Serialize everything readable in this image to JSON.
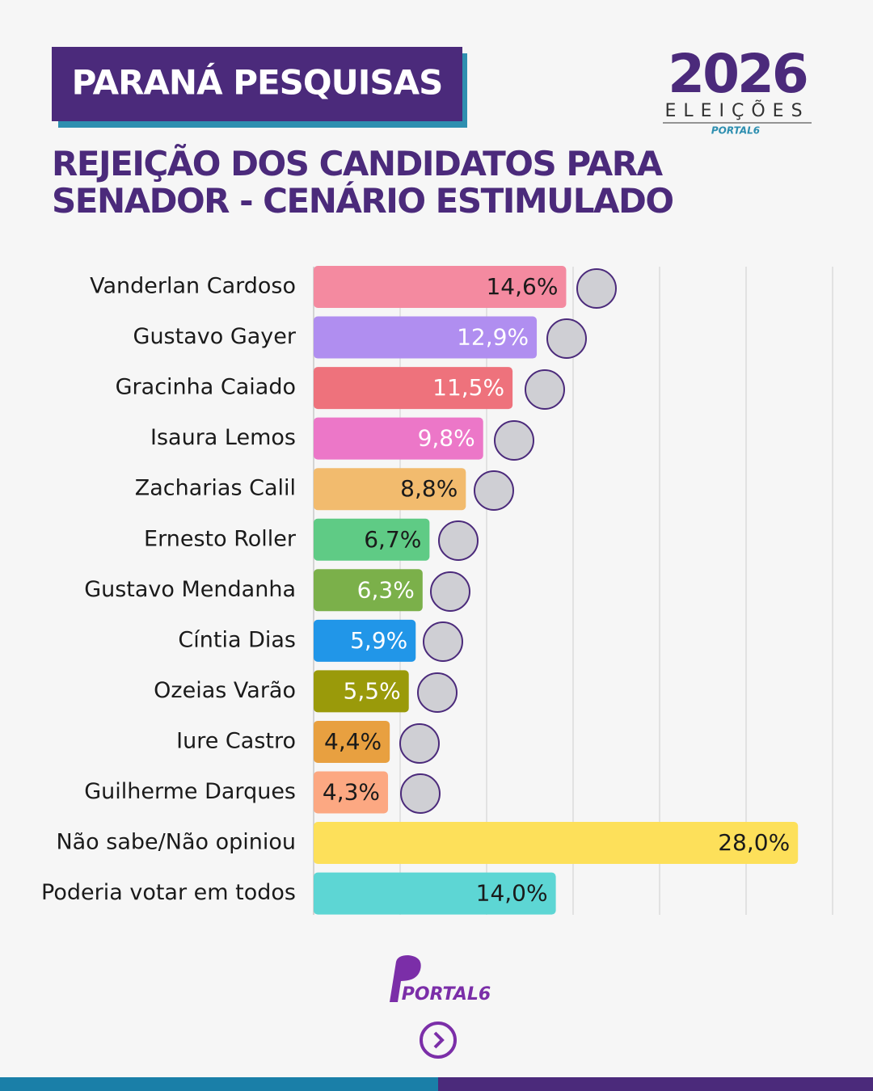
{
  "header": {
    "badge": "PARANÁ PESQUISAS",
    "logo_year": "2026",
    "logo_text": "ELEIÇÕES",
    "logo_brand": "PORTAL6"
  },
  "chart_data": {
    "type": "hbar",
    "title": "REJEIÇÃO DOS CANDIDATOS PARA SENADOR - CENÁRIO ESTIMULADO",
    "categories": [
      "Vanderlan Cardoso",
      "Gustavo Gayer",
      "Gracinha Caiado",
      "Isaura Lemos",
      "Zacharias Calil",
      "Ernesto Roller",
      "Gustavo Mendanha",
      "Cíntia Dias",
      "Ozeias Varão",
      "Iure Castro",
      "Guilherme Darques",
      "Não sabe/Não opiniou",
      "Poderia votar em todos"
    ],
    "values": [
      14.6,
      12.9,
      11.5,
      9.8,
      8.8,
      6.7,
      6.3,
      5.9,
      5.5,
      4.4,
      4.3,
      28.0,
      14.0
    ],
    "value_labels": [
      "14,6%",
      "12,9%",
      "11,5%",
      "9,8%",
      "8,8%",
      "6,7%",
      "6,3%",
      "5,9%",
      "5,5%",
      "4,4%",
      "4,3%",
      "28,0%",
      "14,0%"
    ],
    "colors": [
      "#f48aa0",
      "#b08ef0",
      "#ee727c",
      "#ec77c8",
      "#f2bb6e",
      "#5fcb85",
      "#7bb04a",
      "#2196e8",
      "#9a9a0a",
      "#e8a040",
      "#fca882",
      "#fde05a",
      "#5dd6d4"
    ],
    "label_colors": [
      "#1a1a1a",
      "#ffffff",
      "#ffffff",
      "#ffffff",
      "#1a1a1a",
      "#1a1a1a",
      "#ffffff",
      "#ffffff",
      "#ffffff",
      "#1a1a1a",
      "#1a1a1a",
      "#1a1a1a",
      "#1a1a1a"
    ],
    "xlim": [
      0,
      30
    ],
    "xticks": [
      0,
      5,
      10,
      15,
      20,
      25,
      30
    ],
    "grid": true
  },
  "footer": {
    "brand": "PORTAL6"
  }
}
